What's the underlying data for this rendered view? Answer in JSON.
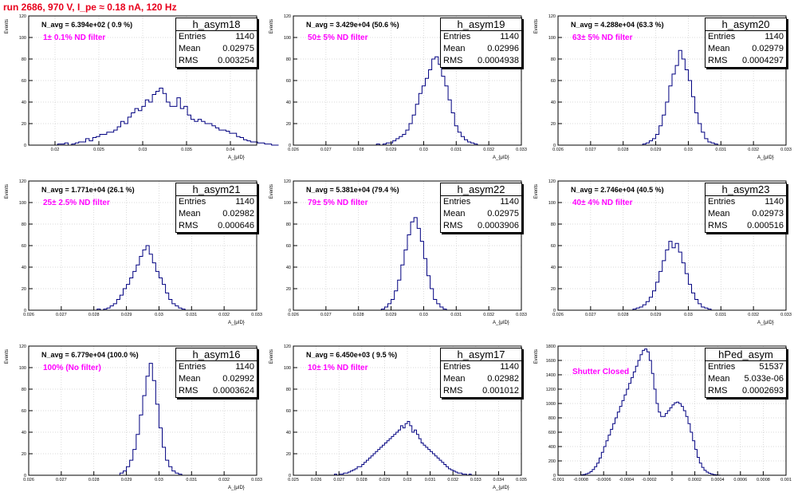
{
  "title": "run 2686,   970 V, I_pe ≈ 0.18 nA, 120 Hz",
  "colors": {
    "title": "#e8001c",
    "hist": "#000080",
    "grid": "#cccccc",
    "annotation": "#ff00ff"
  },
  "chart_data": [
    {
      "type": "histogram",
      "name": "h_asym18",
      "navg": "N_avg = 6.394e+02 ( 0.9 %)",
      "filter": "1± 0.1% ND filter",
      "stats": {
        "Entries": "1140",
        "Mean": "0.02975",
        "RMS": "0.003254"
      },
      "xlim": [
        0.017,
        0.043
      ],
      "ylim": [
        0,
        120
      ],
      "xticks": [
        0.02,
        0.025,
        0.03,
        0.035,
        0.04
      ],
      "xtick_labels": [
        "0.02",
        "0.025",
        "0.03",
        "0.035",
        "0.04"
      ],
      "yticks": [
        0,
        20,
        40,
        60,
        80,
        100,
        120
      ],
      "ylabel": "Events",
      "xlabel": "A_{μID}",
      "bins": {
        "x0": 0.0175,
        "width": 0.0004,
        "counts": [
          0,
          0,
          0,
          0,
          0,
          0,
          0,
          1,
          1,
          2,
          0,
          1,
          2,
          3,
          3,
          6,
          4,
          7,
          8,
          10,
          10,
          12,
          12,
          14,
          17,
          22,
          20,
          26,
          30,
          34,
          32,
          36,
          42,
          40,
          47,
          50,
          53,
          48,
          40,
          36,
          36,
          44,
          34,
          36,
          28,
          24,
          22,
          24,
          22,
          20,
          20,
          18,
          16,
          14,
          14,
          13,
          11,
          11,
          8,
          7,
          5,
          4,
          3,
          3,
          2,
          2,
          1,
          1,
          0,
          0
        ]
      }
    },
    {
      "type": "histogram",
      "name": "h_asym19",
      "navg": "N_avg = 3.429e+04 (50.6 %)",
      "filter": "50± 5% ND filter",
      "stats": {
        "Entries": "1140",
        "Mean": "0.02996",
        "RMS": "0.0004938"
      },
      "xlim": [
        0.026,
        0.033
      ],
      "ylim": [
        0,
        120
      ],
      "xticks": [
        0.026,
        0.027,
        0.028,
        0.029,
        0.03,
        0.031,
        0.032,
        0.033
      ],
      "xtick_labels": [
        "0.026",
        "0.027",
        "0.028",
        "0.029",
        "0.03",
        "0.031",
        "0.032",
        "0.033"
      ],
      "yticks": [
        0,
        20,
        40,
        60,
        80,
        100,
        120
      ],
      "ylabel": "Events",
      "xlabel": "A_{μID}",
      "bins": {
        "x0": 0.02855,
        "width": 0.0001,
        "counts": [
          1,
          0,
          1,
          2,
          2,
          4,
          6,
          8,
          10,
          14,
          20,
          28,
          38,
          48,
          55,
          62,
          70,
          80,
          82,
          75,
          64,
          55,
          42,
          30,
          18,
          12,
          8,
          5,
          3,
          2,
          1
        ]
      }
    },
    {
      "type": "histogram",
      "name": "h_asym20",
      "navg": "N_avg = 4.288e+04 (63.3 %)",
      "filter": "63± 5% ND filter",
      "stats": {
        "Entries": "1140",
        "Mean": "0.02979",
        "RMS": "0.0004297"
      },
      "xlim": [
        0.026,
        0.033
      ],
      "ylim": [
        0,
        120
      ],
      "xticks": [
        0.026,
        0.027,
        0.028,
        0.029,
        0.03,
        0.031,
        0.032,
        0.033
      ],
      "xtick_labels": [
        "0.026",
        "0.027",
        "0.028",
        "0.029",
        "0.03",
        "0.031",
        "0.032",
        "0.033"
      ],
      "yticks": [
        0,
        20,
        40,
        60,
        80,
        100,
        120
      ],
      "ylabel": "Events",
      "xlabel": "A_{μID}",
      "bins": {
        "x0": 0.0286,
        "width": 0.0001,
        "counts": [
          1,
          2,
          4,
          6,
          10,
          18,
          28,
          40,
          55,
          66,
          74,
          88,
          80,
          70,
          60,
          45,
          30,
          20,
          12,
          6,
          3,
          2,
          1
        ]
      }
    },
    {
      "type": "histogram",
      "name": "h_asym21",
      "navg": "N_avg = 1.771e+04 (26.1 %)",
      "filter": "25± 2.5% ND filter",
      "stats": {
        "Entries": "1140",
        "Mean": "0.02982",
        "RMS": "0.000646"
      },
      "xlim": [
        0.026,
        0.033
      ],
      "ylim": [
        0,
        120
      ],
      "xticks": [
        0.026,
        0.027,
        0.028,
        0.029,
        0.03,
        0.031,
        0.032,
        0.033
      ],
      "xtick_labels": [
        "0.026",
        "0.027",
        "0.028",
        "0.029",
        "0.03",
        "0.031",
        "0.032",
        "0.033"
      ],
      "yticks": [
        0,
        20,
        40,
        60,
        80,
        100,
        120
      ],
      "ylabel": "Events",
      "xlabel": "A_{μID}",
      "bins": {
        "x0": 0.0281,
        "width": 0.0001,
        "counts": [
          1,
          0,
          1,
          2,
          4,
          6,
          10,
          14,
          20,
          24,
          30,
          36,
          42,
          50,
          56,
          60,
          52,
          44,
          36,
          30,
          24,
          16,
          10,
          6,
          4,
          2,
          1
        ]
      }
    },
    {
      "type": "histogram",
      "name": "h_asym22",
      "navg": "N_avg = 5.381e+04 (79.4 %)",
      "filter": "79± 5% ND filter",
      "stats": {
        "Entries": "1140",
        "Mean": "0.02975",
        "RMS": "0.0003906"
      },
      "xlim": [
        0.026,
        0.033
      ],
      "ylim": [
        0,
        120
      ],
      "xticks": [
        0.026,
        0.027,
        0.028,
        0.029,
        0.03,
        0.031,
        0.032,
        0.033
      ],
      "xtick_labels": [
        "0.026",
        "0.027",
        "0.028",
        "0.029",
        "0.03",
        "0.031",
        "0.032",
        "0.033"
      ],
      "yticks": [
        0,
        20,
        40,
        60,
        80,
        100,
        120
      ],
      "ylabel": "Events",
      "xlabel": "A_{μID}",
      "bins": {
        "x0": 0.0287,
        "width": 0.0001,
        "counts": [
          1,
          3,
          6,
          10,
          18,
          28,
          42,
          56,
          70,
          82,
          86,
          76,
          64,
          48,
          32,
          20,
          10,
          6,
          3,
          1
        ]
      }
    },
    {
      "type": "histogram",
      "name": "h_asym23",
      "navg": "N_avg = 2.746e+04 (40.5 %)",
      "filter": "40± 4% ND filter",
      "stats": {
        "Entries": "1140",
        "Mean": "0.02973",
        "RMS": "0.000516"
      },
      "xlim": [
        0.026,
        0.033
      ],
      "ylim": [
        0,
        120
      ],
      "xticks": [
        0.026,
        0.027,
        0.028,
        0.029,
        0.03,
        0.031,
        0.032,
        0.033
      ],
      "xtick_labels": [
        "0.026",
        "0.027",
        "0.028",
        "0.029",
        "0.03",
        "0.031",
        "0.032",
        "0.033"
      ],
      "yticks": [
        0,
        20,
        40,
        60,
        80,
        100,
        120
      ],
      "ylabel": "Events",
      "xlabel": "A_{μID}",
      "bins": {
        "x0": 0.0283,
        "width": 0.0001,
        "counts": [
          1,
          2,
          3,
          5,
          8,
          12,
          18,
          26,
          36,
          46,
          56,
          64,
          58,
          62,
          54,
          44,
          34,
          24,
          16,
          10,
          6,
          3,
          2,
          1
        ]
      }
    },
    {
      "type": "histogram",
      "name": "h_asym16",
      "navg": "N_avg = 6.779e+04 (100.0 %)",
      "filter": "100% (No filter)",
      "stats": {
        "Entries": "1140",
        "Mean": "0.02992",
        "RMS": "0.0003624"
      },
      "xlim": [
        0.026,
        0.033
      ],
      "ylim": [
        0,
        120
      ],
      "xticks": [
        0.026,
        0.027,
        0.028,
        0.029,
        0.03,
        0.031,
        0.032,
        0.033
      ],
      "xtick_labels": [
        "0.026",
        "0.027",
        "0.028",
        "0.029",
        "0.03",
        "0.031",
        "0.032",
        "0.033"
      ],
      "yticks": [
        0,
        20,
        40,
        60,
        80,
        100,
        120
      ],
      "ylabel": "Events",
      "xlabel": "A_{μID}",
      "bins": {
        "x0": 0.0288,
        "width": 0.0001,
        "counts": [
          2,
          4,
          8,
          14,
          24,
          38,
          56,
          74,
          92,
          104,
          88,
          66,
          44,
          26,
          14,
          8,
          4,
          2,
          1
        ]
      }
    },
    {
      "type": "histogram",
      "name": "h_asym17",
      "navg": "N_avg = 6.450e+03 ( 9.5 %)",
      "filter": "10± 1% ND filter",
      "stats": {
        "Entries": "1140",
        "Mean": "0.02982",
        "RMS": "0.001012"
      },
      "xlim": [
        0.025,
        0.035
      ],
      "ylim": [
        0,
        120
      ],
      "xticks": [
        0.025,
        0.026,
        0.027,
        0.028,
        0.029,
        0.03,
        0.031,
        0.032,
        0.033,
        0.034,
        0.035
      ],
      "xtick_labels": [
        "0.025",
        "0.026",
        "0.027",
        "0.028",
        "0.029",
        "0.03",
        "0.031",
        "0.032",
        "0.033",
        "0.034",
        "0.035"
      ],
      "yticks": [
        0,
        20,
        40,
        60,
        80,
        100,
        120
      ],
      "ylabel": "Events",
      "xlabel": "A_{μID}",
      "bins": {
        "x0": 0.0268,
        "width": 0.0001,
        "counts": [
          1,
          0,
          1,
          1,
          2,
          2,
          3,
          4,
          5,
          6,
          8,
          8,
          10,
          12,
          14,
          16,
          18,
          20,
          22,
          24,
          26,
          28,
          30,
          32,
          34,
          36,
          38,
          40,
          42,
          46,
          44,
          48,
          50,
          46,
          40,
          42,
          38,
          34,
          30,
          28,
          26,
          24,
          22,
          20,
          18,
          16,
          14,
          12,
          10,
          8,
          6,
          5,
          4,
          3,
          2,
          2,
          1,
          1,
          0,
          1
        ]
      }
    },
    {
      "type": "histogram",
      "name": "hPed_asym",
      "navg": "",
      "filter": "Shutter Closed",
      "stats": {
        "Entries": "51537",
        "Mean": "5.033e-06",
        "RMS": "0.0002693"
      },
      "xlim": [
        -0.001,
        0.001
      ],
      "ylim": [
        0,
        1800
      ],
      "xticks": [
        -0.001,
        -0.0008,
        -0.0006,
        -0.0004,
        -0.0002,
        0,
        0.0002,
        0.0004,
        0.0006,
        0.0008,
        0.001
      ],
      "xtick_labels": [
        "-0.001",
        "-0.0008",
        "-0.0006",
        "-0.0004",
        "-0.0002",
        "0",
        "0.0002",
        "0.0004",
        "0.0006",
        "0.0008",
        "0.001"
      ],
      "yticks": [
        0,
        200,
        400,
        600,
        800,
        1000,
        1200,
        1400,
        1600,
        1800
      ],
      "ylabel": "Events",
      "xlabel": "",
      "bins": {
        "x0": -0.0008,
        "width": 2e-05,
        "counts": [
          5,
          10,
          20,
          30,
          50,
          80,
          120,
          170,
          240,
          320,
          400,
          480,
          560,
          640,
          720,
          800,
          880,
          960,
          1040,
          1120,
          1200,
          1280,
          1360,
          1440,
          1520,
          1600,
          1680,
          1740,
          1760,
          1720,
          1600,
          1420,
          1200,
          1000,
          880,
          820,
          820,
          860,
          900,
          940,
          980,
          1010,
          1020,
          1000,
          960,
          900,
          820,
          720,
          600,
          480,
          360,
          250,
          170,
          110,
          70,
          45,
          28,
          18,
          10,
          6,
          3
        ]
      }
    }
  ]
}
